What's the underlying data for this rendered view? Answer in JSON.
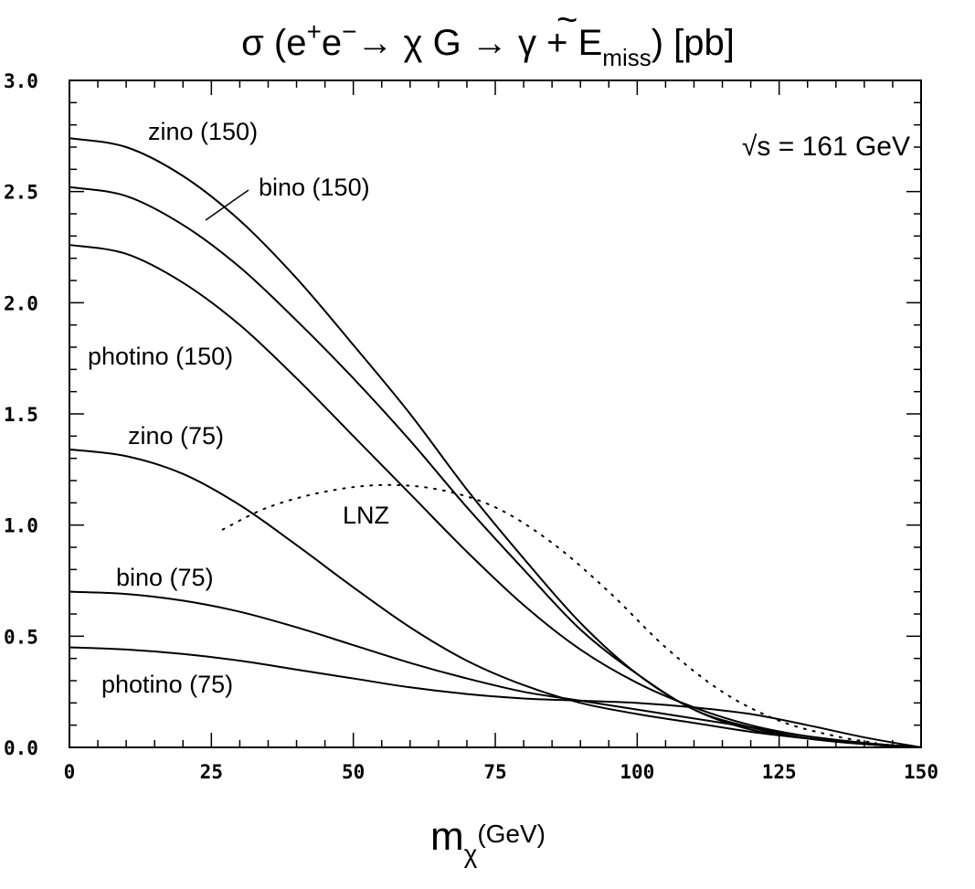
{
  "chart_data": {
    "type": "line",
    "title": {
      "prefix": "σ (e",
      "sup_plus": "+",
      "e2": "e",
      "sup_minus": "−",
      "arrow1": "→ χ ",
      "gravitino": "G",
      "tilde": "~",
      "arrow2": " → γ + E",
      "sub_miss": "miss",
      "suffix": ") [pb]"
    },
    "xlabel": {
      "main": "m",
      "sub": "χ",
      "unit": "(GeV)"
    },
    "xlim": [
      0,
      150
    ],
    "ylim": [
      0,
      3.0
    ],
    "x_ticks": [
      "0",
      "25",
      "50",
      "75",
      "100",
      "125",
      "150"
    ],
    "y_ticks": [
      "0.0",
      "0.5",
      "1.0",
      "1.5",
      "2.0",
      "2.5",
      "3.0"
    ],
    "annotation": "√s = 161 GeV",
    "series": [
      {
        "name": "zino (150)",
        "style": "solid",
        "x": [
          0,
          10,
          20,
          30,
          40,
          50,
          60,
          70,
          80,
          90,
          100,
          110,
          120,
          130,
          140,
          150
        ],
        "y": [
          2.74,
          2.7,
          2.57,
          2.37,
          2.11,
          1.81,
          1.5,
          1.16,
          0.85,
          0.56,
          0.33,
          0.17,
          0.08,
          0.04,
          0.015,
          0.0
        ]
      },
      {
        "name": "bino (150)",
        "style": "solid",
        "x": [
          0,
          10,
          20,
          30,
          40,
          50,
          60,
          70,
          80,
          90,
          100,
          110,
          120,
          130,
          140,
          150
        ],
        "y": [
          2.52,
          2.48,
          2.35,
          2.16,
          1.92,
          1.66,
          1.38,
          1.08,
          0.8,
          0.53,
          0.33,
          0.17,
          0.09,
          0.04,
          0.015,
          0.0
        ]
      },
      {
        "name": "photino (150)",
        "style": "solid",
        "x": [
          0,
          10,
          20,
          30,
          40,
          50,
          60,
          70,
          80,
          90,
          100,
          110,
          120,
          130,
          140,
          150
        ],
        "y": [
          2.26,
          2.22,
          2.09,
          1.9,
          1.66,
          1.4,
          1.14,
          0.88,
          0.64,
          0.44,
          0.29,
          0.18,
          0.1,
          0.05,
          0.02,
          0.0
        ]
      },
      {
        "name": "zino (75)",
        "style": "solid",
        "x": [
          0,
          10,
          20,
          30,
          40,
          50,
          60,
          70,
          80,
          90,
          100,
          110,
          120,
          130,
          140,
          150
        ],
        "y": [
          1.34,
          1.31,
          1.23,
          1.09,
          0.91,
          0.72,
          0.54,
          0.39,
          0.28,
          0.2,
          0.15,
          0.11,
          0.07,
          0.04,
          0.015,
          0.0
        ]
      },
      {
        "name": "bino (75)",
        "style": "solid",
        "x": [
          0,
          10,
          20,
          30,
          40,
          50,
          60,
          70,
          80,
          90,
          100,
          110,
          120,
          130,
          140,
          150
        ],
        "y": [
          0.7,
          0.69,
          0.66,
          0.61,
          0.54,
          0.46,
          0.38,
          0.31,
          0.25,
          0.21,
          0.17,
          0.13,
          0.09,
          0.05,
          0.02,
          0.0
        ]
      },
      {
        "name": "photino (75)",
        "style": "solid",
        "x": [
          0,
          10,
          20,
          30,
          40,
          50,
          60,
          70,
          80,
          90,
          100,
          110,
          120,
          130,
          140,
          150
        ],
        "y": [
          0.45,
          0.44,
          0.42,
          0.39,
          0.35,
          0.31,
          0.27,
          0.24,
          0.22,
          0.21,
          0.2,
          0.18,
          0.15,
          0.1,
          0.045,
          0.0
        ]
      },
      {
        "name": "LNZ",
        "style": "dotted",
        "x": [
          27,
          35,
          45,
          55,
          65,
          75,
          85,
          95,
          105,
          115,
          125,
          135,
          142
        ],
        "y": [
          0.98,
          1.08,
          1.15,
          1.18,
          1.16,
          1.08,
          0.92,
          0.7,
          0.45,
          0.25,
          0.12,
          0.05,
          0.02
        ]
      }
    ]
  }
}
